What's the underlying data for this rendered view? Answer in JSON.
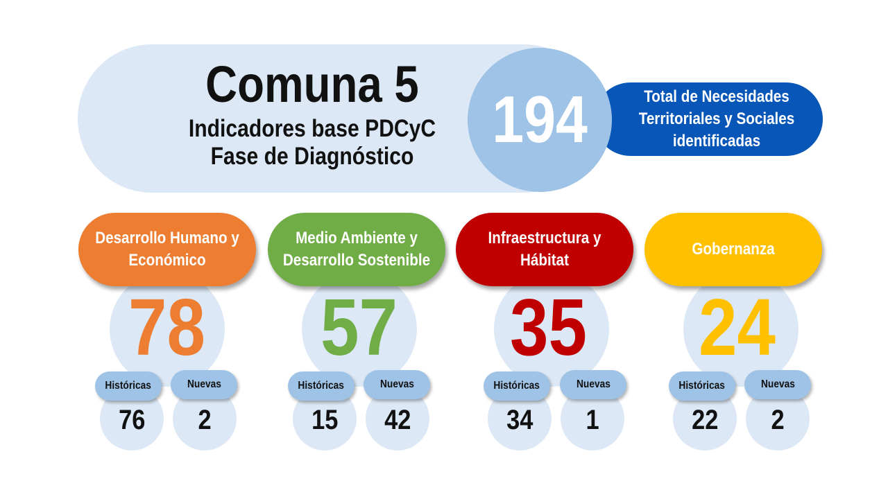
{
  "header": {
    "title": "Comuna 5",
    "subtitle_line1": "Indicadores base PDCyC",
    "subtitle_line2": "Fase de Diagnóstico",
    "total_value": "194",
    "total_label": "Total de Necesidades Territoriales y Sociales identificadas"
  },
  "labels": {
    "historicas": "Históricas",
    "nuevas": "Nuevas"
  },
  "categories": [
    {
      "name": "Desarrollo Humano y Económico",
      "total": "78",
      "historicas": "76",
      "nuevas": "2",
      "color": "#ed7d31"
    },
    {
      "name": "Medio Ambiente y Desarrollo Sostenible",
      "total": "57",
      "historicas": "15",
      "nuevas": "42",
      "color": "#70ad47"
    },
    {
      "name": "Infraestructura y Hábitat",
      "total": "35",
      "historicas": "34",
      "nuevas": "1",
      "color": "#c00000"
    },
    {
      "name": "Gobernanza",
      "total": "24",
      "historicas": "22",
      "nuevas": "2",
      "color": "#ffc000"
    }
  ],
  "colors": {
    "header_pill": "#dce8f5",
    "total_circle": "#9fc3e6",
    "total_pill": "#0756b8",
    "tag_pill": "#9fc3e6"
  }
}
